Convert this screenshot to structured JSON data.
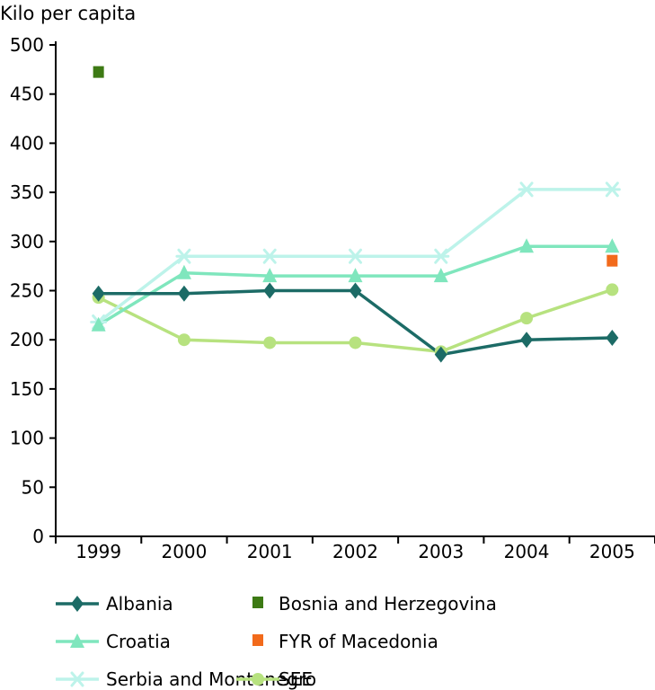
{
  "chart_data": {
    "type": "line",
    "title": "",
    "ylabel": "Kilo per capita",
    "xlabel": "",
    "categories": [
      "1999",
      "2000",
      "2001",
      "2002",
      "2003",
      "2004",
      "2005"
    ],
    "ylim": [
      0,
      500
    ],
    "yticks": [
      "0",
      "50",
      "100",
      "150",
      "200",
      "250",
      "300",
      "350",
      "400",
      "450",
      "500"
    ],
    "grid": false,
    "legend_position": "bottom",
    "series": [
      {
        "name": "Albania",
        "marker": "diamond",
        "color": "#1c6b66",
        "values": [
          247,
          247,
          250,
          250,
          185,
          200,
          202
        ]
      },
      {
        "name": "Croatia",
        "marker": "triangle",
        "color": "#7fe6bd",
        "values": [
          215,
          268,
          265,
          265,
          265,
          295,
          295
        ]
      },
      {
        "name": "Serbia and Montenegro",
        "marker": "asterisk",
        "color": "#bdf3ea",
        "values": [
          218,
          285,
          285,
          285,
          285,
          353,
          353
        ]
      },
      {
        "name": "SEE",
        "marker": "circle",
        "color": "#b7e27f",
        "values": [
          243,
          200,
          197,
          197,
          188,
          222,
          251
        ]
      },
      {
        "name": "Bosnia and Herzegovina",
        "marker": "square",
        "color": "#3d7a14",
        "values": [
          472,
          null,
          null,
          null,
          null,
          null,
          null
        ]
      },
      {
        "name": "FYR of Macedonia",
        "marker": "square",
        "color": "#f26a1b",
        "values": [
          null,
          null,
          null,
          null,
          null,
          null,
          280
        ]
      }
    ],
    "legend_order": [
      "Albania",
      "Bosnia and Herzegovina",
      "Croatia",
      "FYR of Macedonia",
      "Serbia and Montenegro",
      "SEE"
    ]
  }
}
